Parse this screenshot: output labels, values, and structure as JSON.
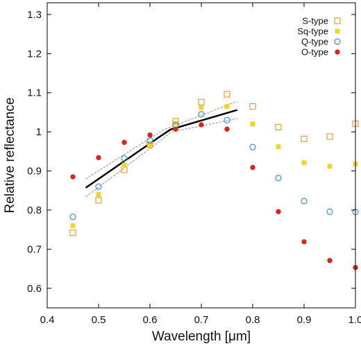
{
  "chart_data": {
    "type": "scatter",
    "xlabel": "Wavelength [μm]",
    "ylabel": "Relative reflectance",
    "xlim": [
      0.4,
      1.0
    ],
    "ylim": [
      0.55,
      1.33
    ],
    "xticks": [
      0.4,
      0.5,
      0.6,
      0.7,
      0.8,
      0.9,
      1.0
    ],
    "xtick_labels": [
      "0.4",
      "0.5",
      "0.6",
      "0.7",
      "0.8",
      "0.9",
      "1.0"
    ],
    "yticks": [
      0.6,
      0.7,
      0.8,
      0.9,
      1.0,
      1.1,
      1.2,
      1.3
    ],
    "ytick_labels": [
      "0.6",
      "0.7",
      "0.8",
      "0.9",
      "1",
      "1.1",
      "1.2",
      "1.3"
    ],
    "legend_position": "top-right",
    "grid": false,
    "series": [
      {
        "name": "S-type",
        "marker": "open-square",
        "color": "#e0a030",
        "x": [
          0.45,
          0.5,
          0.55,
          0.6,
          0.65,
          0.7,
          0.75,
          0.8,
          0.85,
          0.9,
          0.95,
          1.0
        ],
        "y": [
          0.742,
          0.825,
          0.903,
          0.967,
          1.027,
          1.076,
          1.096,
          1.065,
          1.012,
          0.982,
          0.988,
          1.021
        ]
      },
      {
        "name": "Sq-type",
        "marker": "filled-square",
        "color": "#f2d430",
        "x": [
          0.45,
          0.5,
          0.55,
          0.6,
          0.65,
          0.7,
          0.75,
          0.8,
          0.85,
          0.9,
          0.95,
          1.0
        ],
        "y": [
          0.76,
          0.84,
          0.915,
          0.967,
          1.022,
          1.062,
          1.065,
          1.02,
          0.962,
          0.921,
          0.912,
          0.918
        ]
      },
      {
        "name": "Q-type",
        "marker": "open-circle",
        "color": "#3a8fc8",
        "x": [
          0.45,
          0.5,
          0.55,
          0.6,
          0.65,
          0.7,
          0.75,
          0.8,
          0.85,
          0.9,
          0.95,
          1.0
        ],
        "y": [
          0.783,
          0.86,
          0.932,
          0.978,
          1.017,
          1.045,
          1.03,
          0.961,
          0.882,
          0.823,
          0.796,
          0.795
        ]
      },
      {
        "name": "O-type",
        "marker": "filled-circle",
        "color": "#d42a1c",
        "x": [
          0.45,
          0.5,
          0.55,
          0.6,
          0.65,
          0.7,
          0.75,
          0.8,
          0.85,
          0.9,
          0.95,
          1.0
        ],
        "y": [
          0.885,
          0.934,
          0.973,
          0.992,
          1.007,
          1.018,
          1.007,
          0.909,
          0.796,
          0.719,
          0.671,
          0.653
        ]
      }
    ],
    "fit": {
      "color": "#000000",
      "band_color": "#888888",
      "x": [
        0.475,
        0.625,
        0.64,
        0.77
      ],
      "y": [
        0.857,
        0.993,
        1.006,
        1.056
      ],
      "upper": {
        "x": [
          0.475,
          0.625,
          0.64,
          0.77
        ],
        "y": [
          0.88,
          1.004,
          1.012,
          1.078
        ]
      },
      "lower": {
        "x": [
          0.475,
          0.625,
          0.64,
          0.77
        ],
        "y": [
          0.834,
          0.982,
          0.999,
          1.034
        ]
      }
    }
  }
}
